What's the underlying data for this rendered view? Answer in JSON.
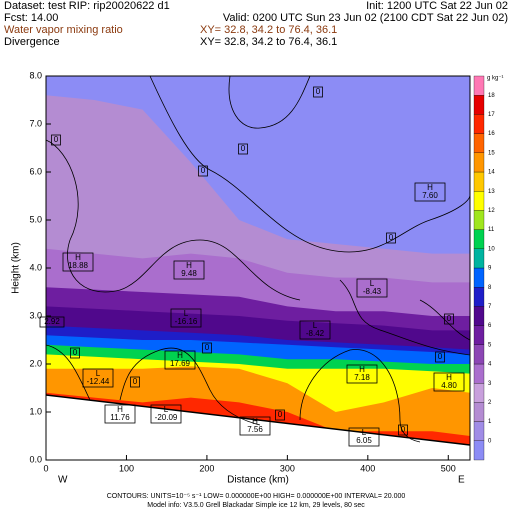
{
  "chart_data": {
    "type": "contour",
    "header": {
      "dataset": "Dataset: test  RIP: rip20020622 d1",
      "init": "Init: 1200 UTC Sat 22 Jun 02",
      "fcst": "Fcst:    14.00",
      "valid": "Valid: 0200 UTC Sun 23 Jun 02 (2100 CDT Sat 22 Jun 02)",
      "field1": "Water vapor mixing ratio",
      "field1_xy": "XY=  32.8, 34.2 to  76.4, 36.1",
      "field2": "Divergence",
      "field2_xy": "XY=  32.8, 34.2 to  76.4, 36.1"
    },
    "xlabel": "Distance (km)",
    "ylabel": "Height (km)",
    "west": "W",
    "east": "E",
    "xlim": [
      0,
      527
    ],
    "ylim": [
      0,
      8
    ],
    "xticks": [
      0,
      100,
      200,
      300,
      400,
      500
    ],
    "yticks": [
      {
        "value": 0,
        "label": "0.0"
      },
      {
        "value": 1,
        "label": "1.0"
      },
      {
        "value": 2,
        "label": "2.0"
      },
      {
        "value": 3,
        "label": "3.0"
      },
      {
        "value": 4,
        "label": "4.0"
      },
      {
        "value": 5,
        "label": "5.0"
      },
      {
        "value": 6,
        "label": "6.0"
      },
      {
        "value": 7,
        "label": "7.0"
      },
      {
        "value": 8,
        "label": "8.0"
      }
    ],
    "colorbar": {
      "units": "g kg⁻¹",
      "levels": [
        0,
        1,
        2,
        3,
        4,
        5,
        6,
        7,
        8,
        9,
        10,
        11,
        12,
        13,
        14,
        15,
        16,
        17,
        18
      ],
      "colors": [
        "#8c8cf5",
        "#a08ce6",
        "#b48cd2",
        "#c8a0dc",
        "#aa6ecd",
        "#8c46b4",
        "#6e1ea0",
        "#50088c",
        "#1e1ec8",
        "#0064ff",
        "#00b4a0",
        "#00d250",
        "#a0e61e",
        "#ffff00",
        "#ffc800",
        "#ff9600",
        "#ff6400",
        "#ff2800",
        "#e60000",
        "#ff78b4"
      ]
    },
    "annotations": [
      {
        "label": "0"
      },
      {
        "label": "0"
      },
      {
        "label": "0"
      },
      {
        "label": "0"
      },
      {
        "label": "0"
      },
      {
        "label": "0"
      },
      {
        "label": "0"
      },
      {
        "label": "0"
      },
      {
        "label": "0"
      },
      {
        "label": "0"
      },
      {
        "label": "0"
      },
      {
        "label": "0"
      },
      {
        "symbol": "H",
        "label": "7.60"
      },
      {
        "symbol": "H",
        "label": "18.88"
      },
      {
        "symbol": "H",
        "label": "9.48"
      },
      {
        "symbol": "L",
        "label": "-8.43"
      },
      {
        "symbol": "L",
        "label": "-16.16"
      },
      {
        "symbol": "L",
        "label": "-8.42"
      },
      {
        "label": "2.92"
      },
      {
        "symbol": "H",
        "label": "7.18"
      },
      {
        "symbol": "H",
        "label": "17.69"
      },
      {
        "symbol": "L",
        "label": "-12.44"
      },
      {
        "symbol": "H",
        "label": "4.80"
      },
      {
        "symbol": "H",
        "label": "11.76"
      },
      {
        "symbol": "L",
        "label": "-20.09"
      },
      {
        "symbol": "H",
        "label": "7.56"
      },
      {
        "symbol": "L",
        "label": "6.05"
      }
    ],
    "footer": {
      "contours": "CONTOURS:  UNITS=10⁻⁵ s⁻¹  LOW= 0.000000E+00  HIGH= 0.000000E+00  INTERVAL=    20.000",
      "model": "Model info: V3.5.0   Grell     Blackadar   Simple ice     12 km,  29 levels,   80 sec"
    }
  }
}
